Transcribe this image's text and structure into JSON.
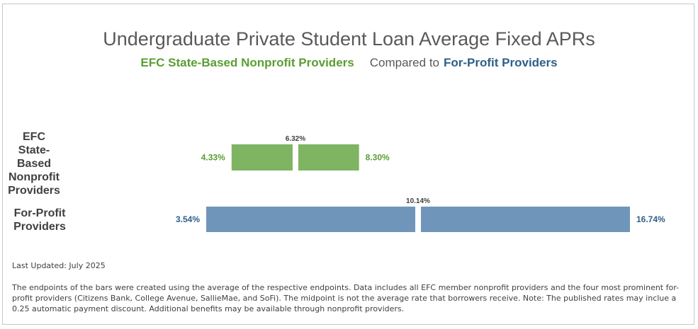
{
  "chart_data": {
    "type": "bar",
    "orientation": "horizontal-range",
    "title": "Undergraduate Private Student Loan Average Fixed APRs",
    "subtitle": {
      "part1": "EFC State-Based Nonprofit Providers",
      "part2": "Compared to",
      "part3": "For-Profit Providers"
    },
    "categories": [
      "EFC State-Based Nonprofit Providers",
      "For-Profit Providers"
    ],
    "series": [
      {
        "low": 4.33,
        "mid": 6.32,
        "high": 8.3,
        "low_label": "4.33%",
        "mid_label": "6.32%",
        "high_label": "8.30%",
        "color": "#7fb462",
        "label_color": "#5a9e32"
      },
      {
        "low": 3.54,
        "mid": 10.14,
        "high": 16.74,
        "low_label": "3.54%",
        "mid_label": "10.14%",
        "high_label": "16.74%",
        "color": "#7095bb",
        "label_color": "#2e5f8a"
      }
    ],
    "xlim": [
      3.0,
      17.5
    ],
    "grid": false,
    "legend": "none"
  },
  "labels": {
    "cat1_lines": [
      "EFC State-",
      "Based",
      "Nonprofit",
      "Providers"
    ],
    "cat2_lines": [
      "For-Profit",
      "Providers"
    ]
  },
  "footer": {
    "updated": "Last Updated: July 2025",
    "note": "The endpoints of the bars were created using the average of the respective endpoints. Data includes all EFC member nonprofit providers and the four most prominent for-profit providers (Citizens Bank, College Avenue, SallieMae, and SoFi). The midpoint is not the average rate that borrowers receive. Note: The published rates may inclue a 0.25 automatic payment discount. Additional benefits may be available through nonprofit providers."
  }
}
